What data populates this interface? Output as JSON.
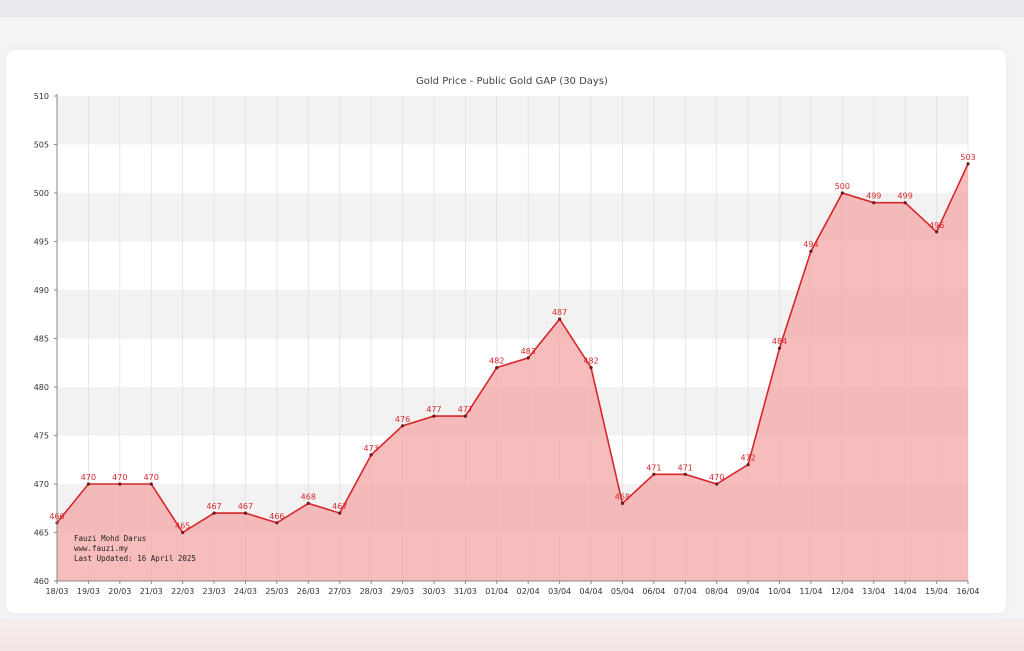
{
  "chart_data": {
    "type": "area",
    "title": "Gold Price - Public Gold GAP (30 Days)",
    "xlabel": "",
    "ylabel": "",
    "categories": [
      "18/03",
      "19/03",
      "20/03",
      "21/03",
      "22/03",
      "23/03",
      "24/03",
      "25/03",
      "26/03",
      "27/03",
      "28/03",
      "29/03",
      "30/03",
      "31/03",
      "01/04",
      "02/04",
      "03/04",
      "04/04",
      "05/04",
      "06/04",
      "07/04",
      "08/04",
      "09/04",
      "10/04",
      "11/04",
      "12/04",
      "13/04",
      "14/04",
      "15/04",
      "16/04"
    ],
    "values": [
      466,
      470,
      470,
      470,
      465,
      467,
      467,
      466,
      468,
      467,
      473,
      476,
      477,
      477,
      482,
      483,
      487,
      482,
      468,
      471,
      471,
      470,
      472,
      484,
      494,
      500,
      499,
      499,
      496,
      503
    ],
    "point_labels": [
      "466",
      "470",
      "470",
      "470",
      "465",
      "467",
      "467",
      "466",
      "468",
      "467",
      "473",
      "476",
      "477",
      "477",
      "482",
      "483",
      "487",
      "482",
      "468",
      "471",
      "471",
      "470",
      "472",
      "484",
      "494",
      "500",
      "499",
      "499",
      "496",
      "503"
    ],
    "ylim": [
      460,
      510
    ],
    "yticks": [
      460,
      465,
      470,
      475,
      480,
      485,
      490,
      495,
      500,
      505,
      510
    ],
    "grid": true,
    "colors": {
      "line": "#d7262b",
      "fill": "#f4a7a7",
      "band": "#f2f2f2"
    },
    "credit": [
      "Fauzi Mohd Darus",
      "www.fauzi.my",
      "Last Updated: 16 April 2025"
    ]
  }
}
